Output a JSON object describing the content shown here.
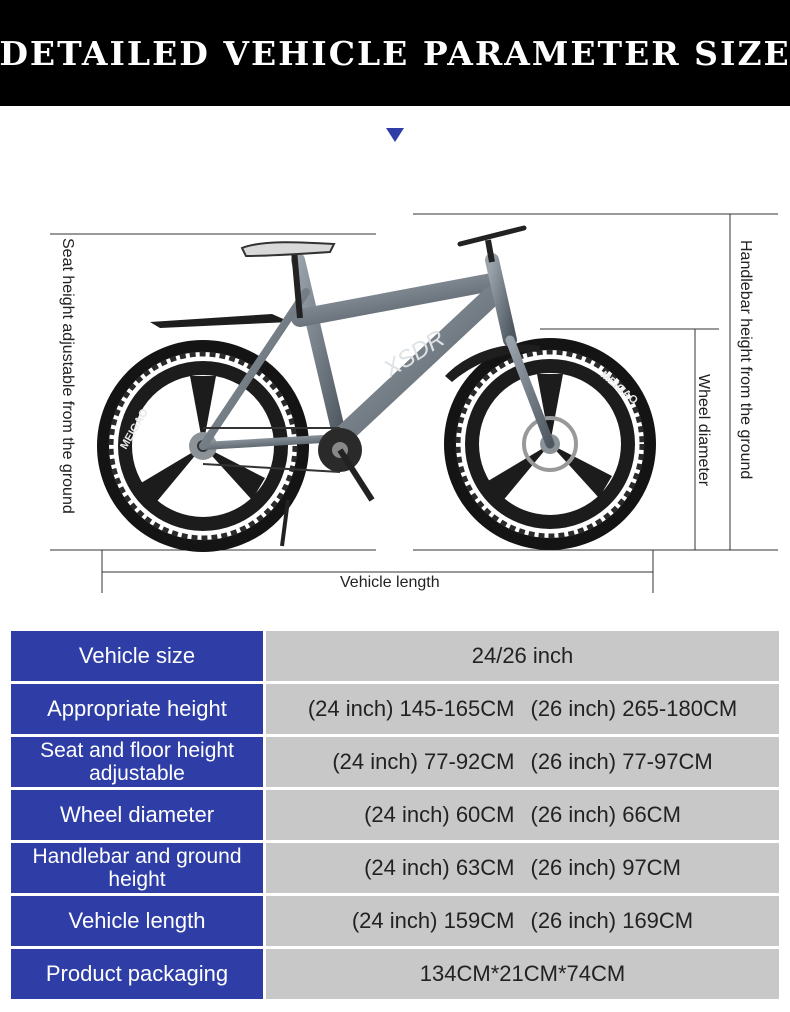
{
  "header": {
    "title": "Detailed vehicle parameter size"
  },
  "diagram": {
    "seat_height_label": "Seat height adjustable from the ground",
    "handlebar_height_label": "Handlebar height from the ground",
    "wheel_diameter_label": "Wheel diameter",
    "vehicle_length_label": "Vehicle length",
    "brand_text": "MEIGAO",
    "frame_text": "XSDR"
  },
  "specs": [
    {
      "label": "Vehicle size",
      "value_a": "24/26 inch",
      "value_b": ""
    },
    {
      "label": "Appropriate height",
      "value_a": "(24 inch) 145-165CM",
      "value_b": "(26 inch) 265-180CM"
    },
    {
      "label": "Seat and floor height adjustable",
      "value_a": "(24 inch) 77-92CM",
      "value_b": "(26 inch) 77-97CM"
    },
    {
      "label": "Wheel diameter",
      "value_a": "(24 inch) 60CM",
      "value_b": "(26 inch) 66CM"
    },
    {
      "label": "Handlebar and ground height",
      "value_a": "(24 inch) 63CM",
      "value_b": "(26 inch) 97CM"
    },
    {
      "label": "Vehicle length",
      "value_a": "(24 inch) 159CM",
      "value_b": "(26 inch) 169CM"
    },
    {
      "label": "Product packaging",
      "value_a": "134CM*21CM*74CM",
      "value_b": ""
    }
  ],
  "colors": {
    "header_bg": "#000000",
    "label_bg": "#2f3ea6",
    "value_bg": "#c8c8c8",
    "frame": "#6e7880"
  }
}
